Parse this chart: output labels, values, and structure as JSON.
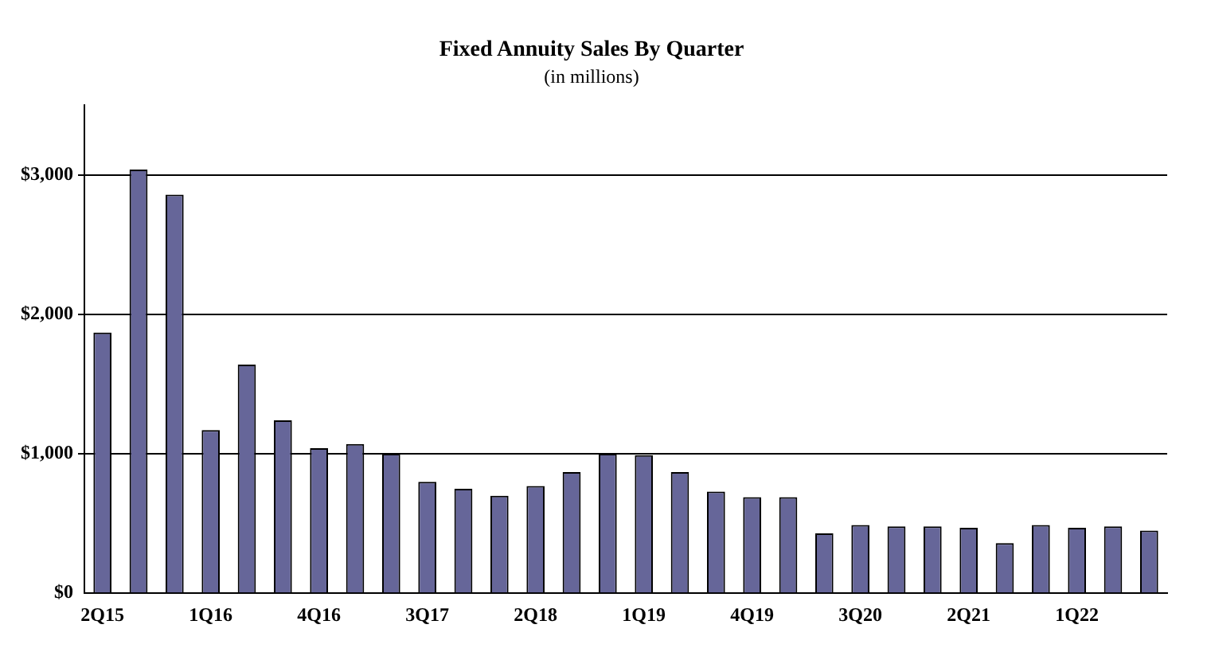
{
  "chart_data": {
    "type": "bar",
    "title": "Fixed Annuity Sales By Quarter",
    "subtitle": "(in millions)",
    "categories": [
      "2Q15",
      null,
      null,
      "1Q16",
      null,
      null,
      "4Q16",
      null,
      null,
      "3Q17",
      null,
      null,
      "2Q18",
      null,
      null,
      "1Q19",
      null,
      null,
      "4Q19",
      null,
      null,
      "3Q20",
      null,
      null,
      "2Q21",
      null,
      null,
      "1Q22",
      null,
      null
    ],
    "values": [
      1870,
      3040,
      2860,
      1170,
      1640,
      1240,
      1040,
      1070,
      1000,
      800,
      750,
      700,
      770,
      870,
      1000,
      990,
      870,
      730,
      690,
      690,
      430,
      490,
      480,
      480,
      470,
      360,
      490,
      470,
      480,
      450
    ],
    "color": "#666699",
    "ylim": [
      0,
      3500
    ],
    "yticks": [
      {
        "value": 0,
        "label": "$0"
      },
      {
        "value": 1000,
        "label": "$1,000"
      },
      {
        "value": 2000,
        "label": "$2,000"
      },
      {
        "value": 3000,
        "label": "$3,000"
      }
    ],
    "grid": "y",
    "legend": false
  }
}
